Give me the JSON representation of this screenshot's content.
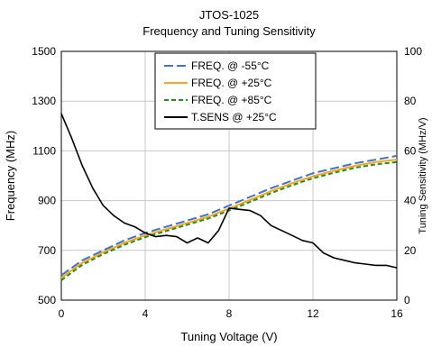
{
  "chart_data": {
    "type": "line",
    "title": "JTOS-1025",
    "subtitle": "Frequency and Tuning Sensitivity",
    "xlabel": "Tuning Voltage (V)",
    "ylabel": "Frequency (MHz)",
    "y2label": "Tuning Sensitivity (MHz/V)",
    "xlim": [
      0,
      16
    ],
    "ylim": [
      500,
      1500
    ],
    "y2lim": [
      0,
      100
    ],
    "x_ticks": [
      "0",
      "4",
      "8",
      "12",
      "16"
    ],
    "y_ticks": [
      "500",
      "700",
      "900",
      "1100",
      "1300",
      "1500"
    ],
    "y2_ticks": [
      "0",
      "20",
      "40",
      "60",
      "80",
      "100"
    ],
    "grid": true,
    "legend_position": "top-center",
    "series": [
      {
        "name": "FREQ. @ -55°C",
        "axis": "left",
        "color": "#4472c4",
        "style": "dashed",
        "x": [
          0,
          1,
          2,
          3,
          4,
          5,
          6,
          7,
          8,
          9,
          10,
          11,
          12,
          13,
          14,
          15,
          16
        ],
        "y": [
          600,
          660,
          700,
          740,
          770,
          795,
          820,
          845,
          880,
          915,
          950,
          980,
          1010,
          1030,
          1050,
          1065,
          1080
        ]
      },
      {
        "name": "FREQ. @ +25°C",
        "axis": "left",
        "color": "#f5a623",
        "style": "solid",
        "x": [
          0,
          1,
          2,
          3,
          4,
          5,
          6,
          7,
          8,
          9,
          10,
          11,
          12,
          13,
          14,
          15,
          16
        ],
        "y": [
          590,
          650,
          692,
          730,
          760,
          785,
          810,
          835,
          868,
          903,
          938,
          970,
          998,
          1020,
          1040,
          1055,
          1065
        ]
      },
      {
        "name": "FREQ. @ +85°C",
        "axis": "left",
        "color": "#2e8b1e",
        "style": "dashed",
        "x": [
          0,
          1,
          2,
          3,
          4,
          5,
          6,
          7,
          8,
          9,
          10,
          11,
          12,
          13,
          14,
          15,
          16
        ],
        "y": [
          580,
          642,
          685,
          722,
          753,
          778,
          803,
          828,
          860,
          895,
          930,
          962,
          990,
          1012,
          1032,
          1046,
          1055
        ]
      },
      {
        "name": "T.SENS @ +25°C",
        "axis": "right",
        "color": "#000000",
        "style": "solid",
        "x": [
          0,
          0.5,
          1,
          1.5,
          2,
          2.5,
          3,
          3.5,
          4,
          4.5,
          5,
          5.5,
          6,
          6.5,
          7,
          7.5,
          8,
          8.5,
          9,
          9.5,
          10,
          10.5,
          11,
          11.5,
          12,
          12.5,
          13,
          13.5,
          14,
          14.5,
          15,
          15.5,
          16
        ],
        "y": [
          75,
          65,
          54,
          45,
          38,
          34,
          31,
          29.5,
          27,
          25.5,
          26,
          25.5,
          23,
          25,
          23,
          28,
          37,
          36.5,
          36,
          34,
          30,
          28,
          26,
          24,
          23,
          19,
          17,
          16,
          15,
          14.5,
          14,
          14,
          13
        ]
      }
    ]
  }
}
